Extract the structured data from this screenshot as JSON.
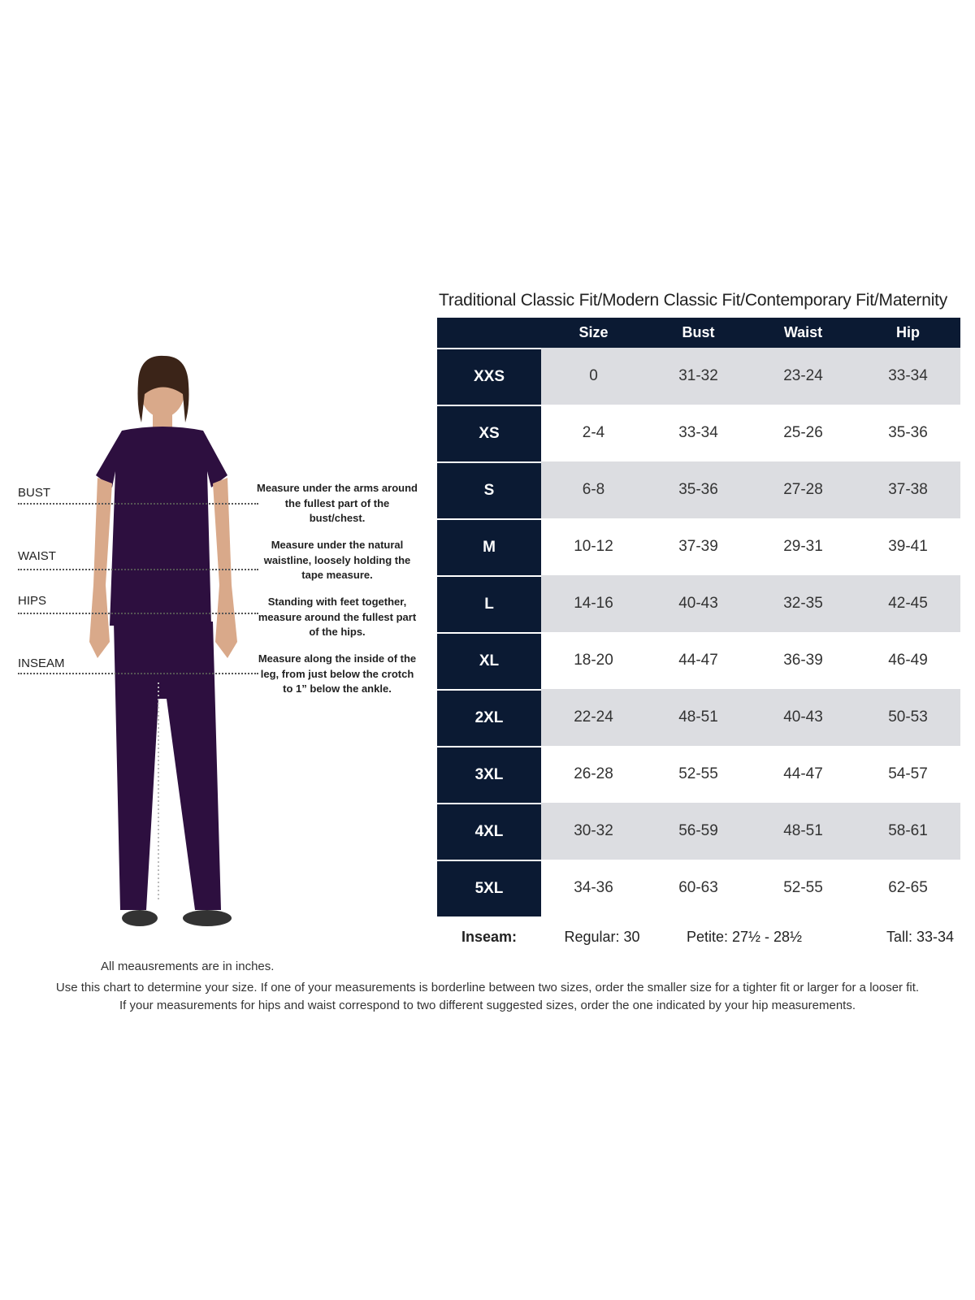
{
  "title": "Traditional Classic Fit/Modern Classic Fit/Contemporary Fit/Maternity",
  "table": {
    "headers": [
      "",
      "Size",
      "Bust",
      "Waist",
      "Hip"
    ],
    "rows": [
      {
        "label": "XXS",
        "size": "0",
        "bust": "31-32",
        "waist": "23-24",
        "hip": "33-34"
      },
      {
        "label": "XS",
        "size": "2-4",
        "bust": "33-34",
        "waist": "25-26",
        "hip": "35-36"
      },
      {
        "label": "S",
        "size": "6-8",
        "bust": "35-36",
        "waist": "27-28",
        "hip": "37-38"
      },
      {
        "label": "M",
        "size": "10-12",
        "bust": "37-39",
        "waist": "29-31",
        "hip": "39-41"
      },
      {
        "label": "L",
        "size": "14-16",
        "bust": "40-43",
        "waist": "32-35",
        "hip": "42-45"
      },
      {
        "label": "XL",
        "size": "18-20",
        "bust": "44-47",
        "waist": "36-39",
        "hip": "46-49"
      },
      {
        "label": "2XL",
        "size": "22-24",
        "bust": "48-51",
        "waist": "40-43",
        "hip": "50-53"
      },
      {
        "label": "3XL",
        "size": "26-28",
        "bust": "52-55",
        "waist": "44-47",
        "hip": "54-57"
      },
      {
        "label": "4XL",
        "size": "30-32",
        "bust": "56-59",
        "waist": "48-51",
        "hip": "58-61"
      },
      {
        "label": "5XL",
        "size": "34-36",
        "bust": "60-63",
        "waist": "52-55",
        "hip": "62-65"
      }
    ],
    "colors": {
      "dark": "#0b1a33",
      "stripe": "#dcdde1"
    }
  },
  "inseam": {
    "label": "Inseam:",
    "regular": "Regular: 30",
    "petite": "Petite: 27½ - 28½",
    "tall": "Tall: 33-34"
  },
  "measurements": [
    {
      "name": "BUST",
      "desc": "Measure under the arms around the fullest part of the bust/chest."
    },
    {
      "name": "WAIST",
      "desc": "Measure under the natural waistline, loosely holding the tape measure."
    },
    {
      "name": "HIPS",
      "desc": "Standing with feet together, measure around the fullest part of the hips."
    },
    {
      "name": "INSEAM",
      "desc": "Measure along the inside of the leg, from just below the crotch to 1” below the ankle."
    }
  ],
  "note_units": "All meausrements are in inches.",
  "note_1": "Use this chart to determine your size. If one of your measurements is borderline between two sizes, order the smaller size for a tighter fit or larger for a looser fit.",
  "note_2": "If your measurements for hips and waist correspond to two different suggested sizes, order the one indicated by your hip measurements.",
  "scrub_color": "#2d0f3f"
}
